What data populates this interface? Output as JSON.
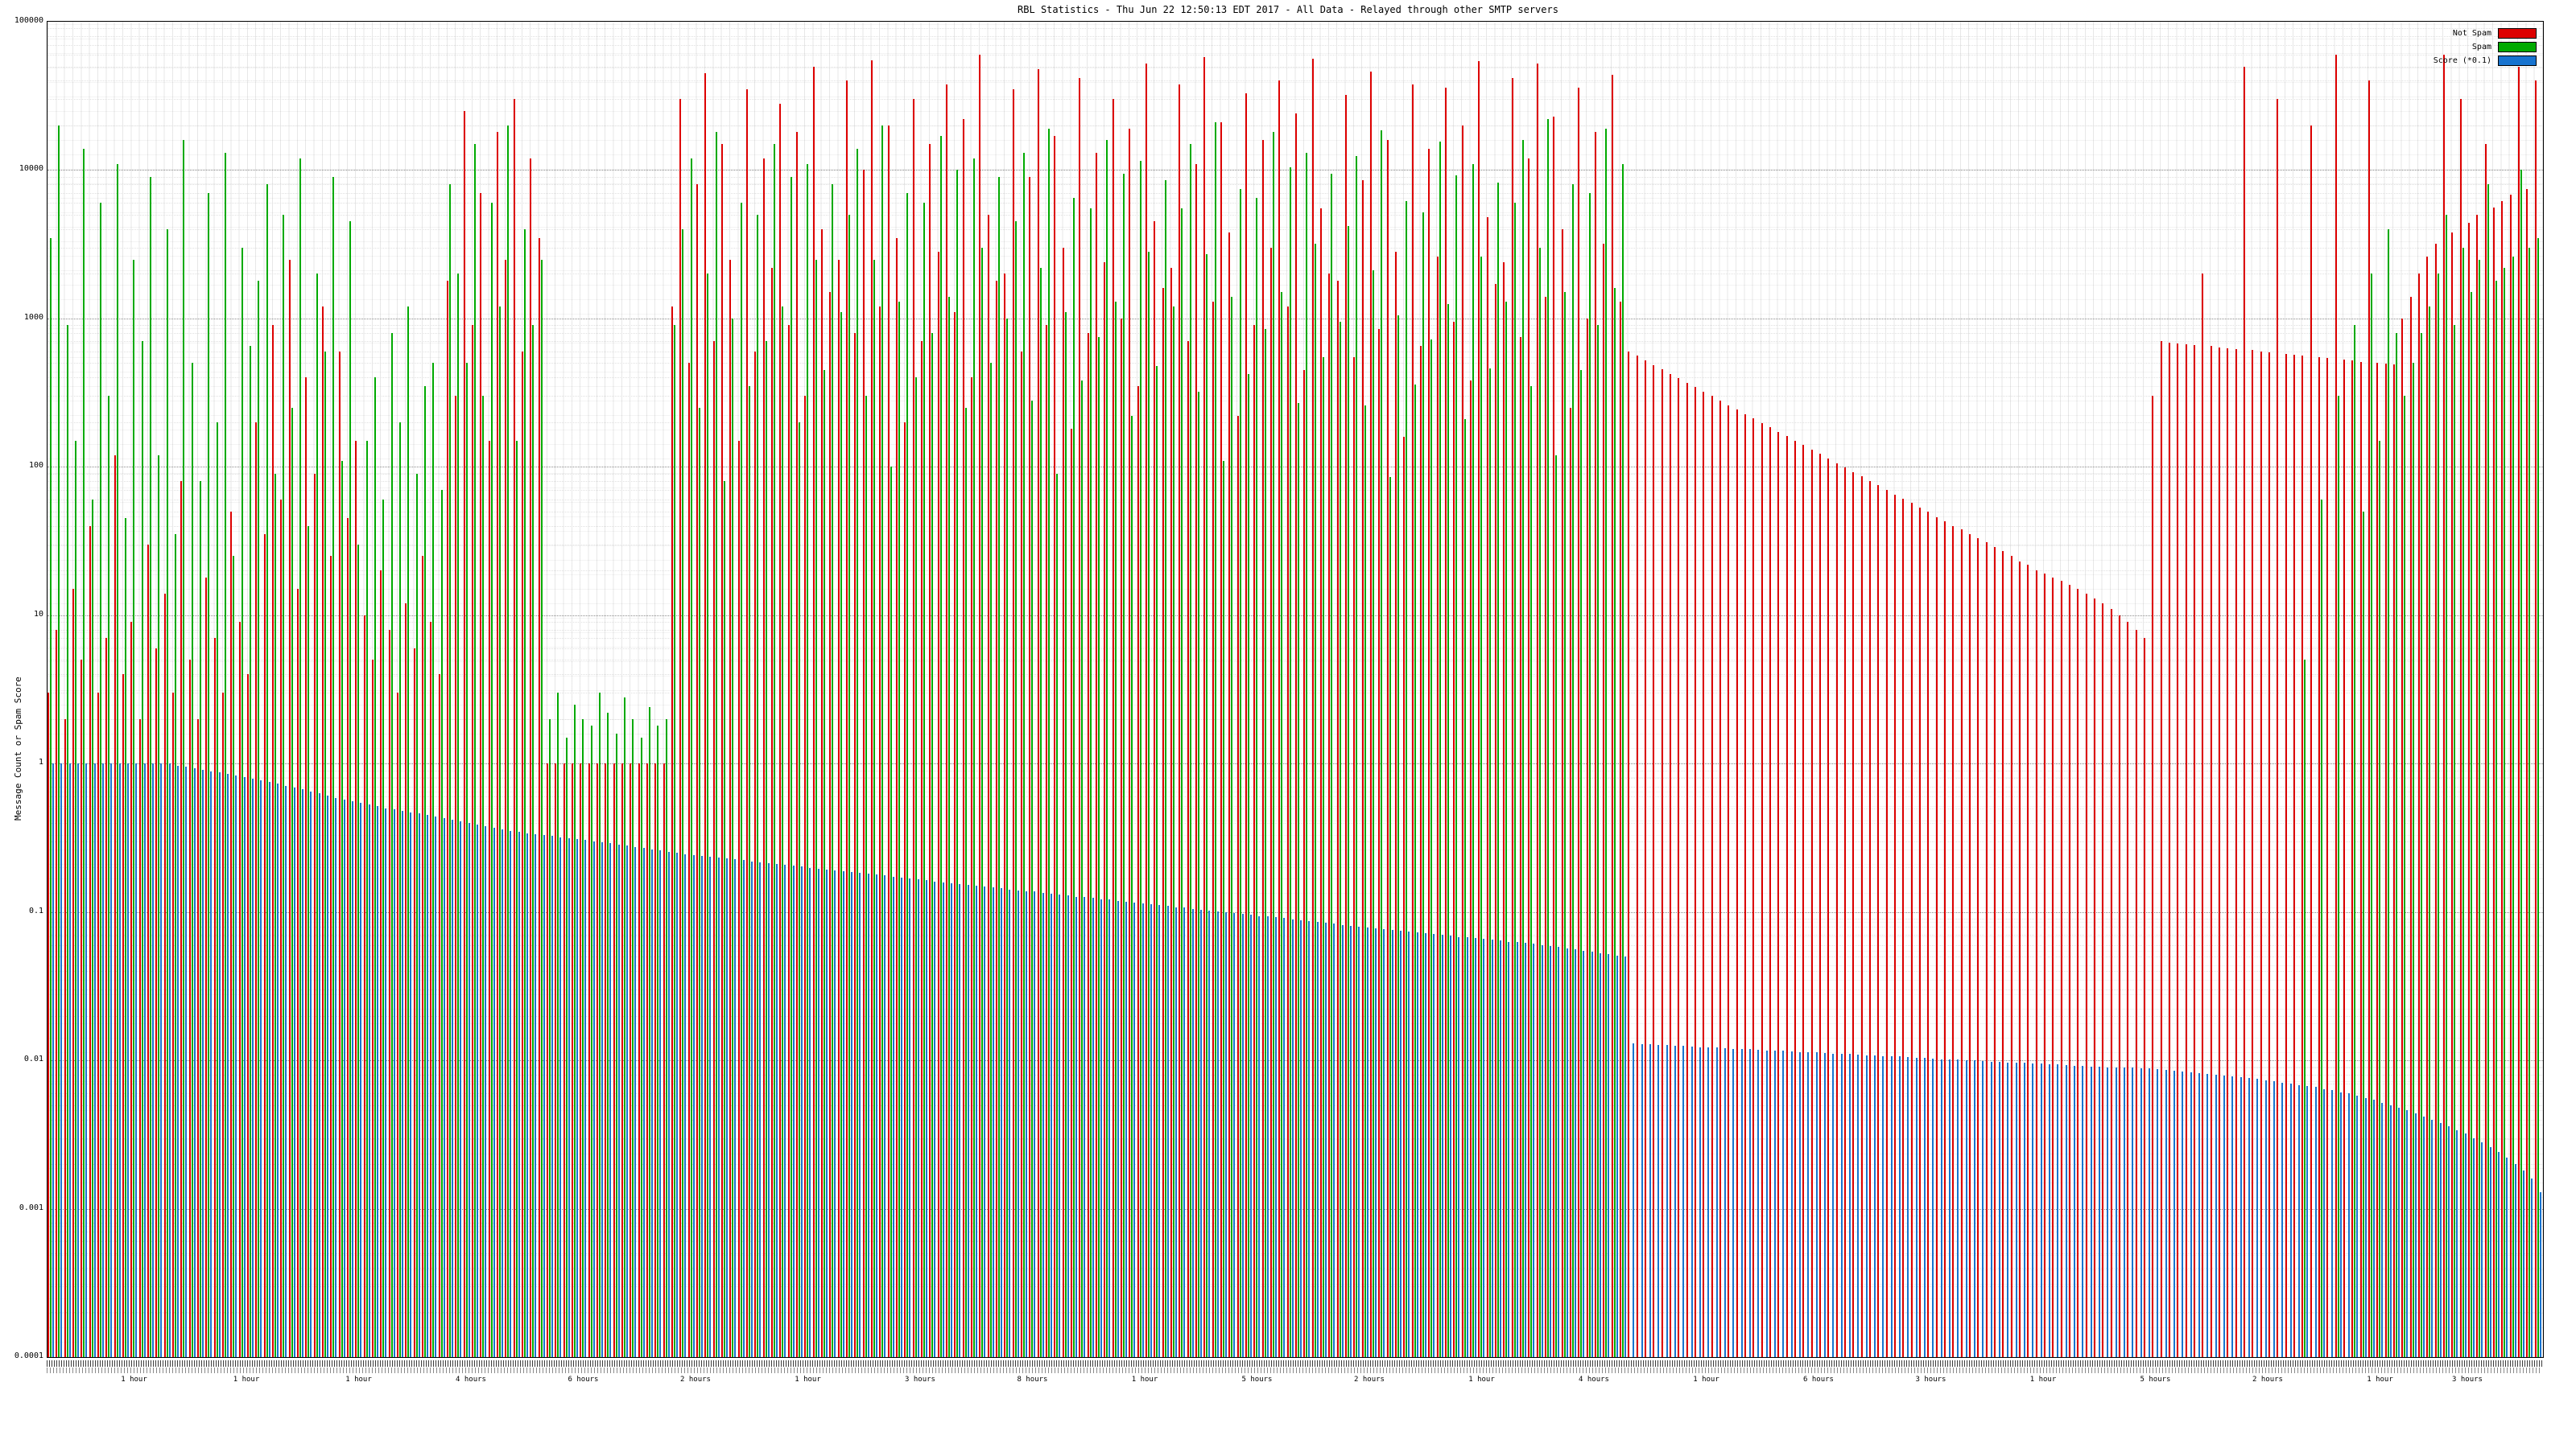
{
  "title": "RBL Statistics - Thu Jun 22 12:50:13 EDT 2017 - All Data - Relayed through other SMTP servers",
  "y_axis": {
    "label": "Message Count or Spam Score",
    "ticks": [
      "100000",
      "10000",
      "1000",
      "100",
      "10",
      "1",
      "0.1",
      "0.01",
      "0.001",
      "0.0001"
    ]
  },
  "legend": {
    "items": [
      {
        "label": "Not Spam",
        "color": "#dd0000"
      },
      {
        "label": "Spam",
        "color": "#00aa00"
      },
      {
        "label": "Score (*0.1)",
        "color": "#1773cf"
      }
    ]
  },
  "x_axis": {
    "duration_labels": [
      {
        "text": "1 hour",
        "pos": 3.5
      },
      {
        "text": "1 hour",
        "pos": 8
      },
      {
        "text": "1 hour",
        "pos": 12.5
      },
      {
        "text": "4 hours",
        "pos": 17
      },
      {
        "text": "6 hours",
        "pos": 21.5
      },
      {
        "text": "2 hours",
        "pos": 26
      },
      {
        "text": "1 hour",
        "pos": 30.5
      },
      {
        "text": "3 hours",
        "pos": 35
      },
      {
        "text": "8 hours",
        "pos": 39.5
      },
      {
        "text": "1 hour",
        "pos": 44
      },
      {
        "text": "5 hours",
        "pos": 48.5
      },
      {
        "text": "2 hours",
        "pos": 53
      },
      {
        "text": "1 hour",
        "pos": 57.5
      },
      {
        "text": "4 hours",
        "pos": 62
      },
      {
        "text": "1 hour",
        "pos": 66.5
      },
      {
        "text": "6 hours",
        "pos": 71
      },
      {
        "text": "3 hours",
        "pos": 75.5
      },
      {
        "text": "1 hour",
        "pos": 80
      },
      {
        "text": "5 hours",
        "pos": 84.5
      },
      {
        "text": "2 hours",
        "pos": 89
      },
      {
        "text": "1 hour",
        "pos": 93.5
      },
      {
        "text": "3 hours",
        "pos": 97
      }
    ]
  },
  "chart_data": {
    "type": "bar",
    "yscale": "log",
    "ylim": [
      0.0001,
      100000
    ],
    "title": "RBL Statistics - Thu Jun 22 12:50:13 EDT 2017 - All Data - Relayed through other SMTP servers",
    "ylabel": "Message Count or Spam Score",
    "grid": true,
    "legend_position": "top-right",
    "series": [
      {
        "name": "Not Spam",
        "color": "#dd0000",
        "values": [
          3,
          8,
          2,
          15,
          5,
          40,
          3,
          7,
          120,
          4,
          9,
          2,
          30,
          6,
          14,
          3,
          80,
          5,
          2,
          18,
          7,
          3,
          50,
          9,
          4,
          200,
          35,
          900,
          60,
          2500,
          15,
          400,
          90,
          1200,
          25,
          600,
          45,
          150,
          10,
          5,
          20,
          8,
          3,
          12,
          6,
          25,
          9,
          4,
          1800,
          300,
          25000,
          900,
          7000,
          150,
          18000,
          2500,
          30000,
          600,
          12000,
          3500,
          1,
          1,
          1,
          1,
          1,
          1,
          1,
          1,
          1,
          1,
          1,
          1,
          1,
          1,
          1,
          1200,
          30000,
          500,
          8000,
          45000,
          700,
          15000,
          2500,
          150,
          35000,
          600,
          12000,
          2200,
          28000,
          900,
          18000,
          300,
          50000,
          4000,
          1500,
          2500,
          40000,
          800,
          10000,
          55000,
          1200,
          20000,
          3500,
          200,
          30000,
          700,
          15000,
          2800,
          38000,
          1100,
          22000,
          400,
          60000,
          5000,
          1800,
          2000,
          35000,
          600,
          9000,
          48000,
          900,
          17000,
          3000,
          180,
          42000,
          800,
          13000,
          2400,
          30000,
          1000,
          19000,
          350,
          52000,
          4500,
          1600,
          2200,
          38000,
          700,
          11000,
          58000,
          1300,
          21000,
          3800,
          220,
          33000,
          900,
          16000,
          3000,
          40000,
          1200,
          24000,
          450,
          56000,
          5500,
          2000,
          1800,
          32000,
          550,
          8500,
          46000,
          850,
          16000,
          2800,
          160,
          38000,
          650,
          14000,
          2600,
          36000,
          950,
          20000,
          380,
          54000,
          4800,
          1700,
          2400,
          42000,
          750,
          12000,
          52000,
          1400,
          23000,
          4000,
          250,
          36000,
          1000,
          18000,
          3200,
          44000,
          1300,
          600,
          560,
          522,
          487,
          454,
          424,
          396,
          369,
          344,
          321,
          300,
          280,
          261,
          244,
          227,
          212,
          198,
          185,
          172,
          161,
          150,
          140,
          131,
          122,
          114,
          106,
          99,
          92,
          86,
          80,
          75,
          70,
          65,
          61,
          57,
          53,
          50,
          46,
          43,
          40,
          38,
          35,
          33,
          31,
          29,
          27,
          25,
          23,
          22,
          20,
          19,
          18,
          17,
          16,
          15,
          14,
          13,
          12,
          11,
          10,
          9,
          8,
          7,
          300,
          700,
          690,
          680,
          670,
          660,
          2000,
          650,
          640,
          630,
          620,
          50000,
          610,
          600,
          590,
          30000,
          580,
          570,
          560,
          20000,
          550,
          540,
          60000,
          530,
          520,
          510,
          40000,
          500,
          495,
          490,
          1000,
          1400,
          2000,
          2600,
          3200,
          60000,
          3800,
          30000,
          4400,
          5000,
          15000,
          5600,
          6200,
          6800,
          50000,
          7500,
          40000
        ]
      },
      {
        "name": "Spam",
        "color": "#00aa00",
        "values": [
          3500,
          20000,
          900,
          150,
          14000,
          60,
          6000,
          300,
          11000,
          45,
          2500,
          700,
          9000,
          120,
          4000,
          35,
          16000,
          500,
          80,
          7000,
          200,
          13000,
          25,
          3000,
          650,
          1800,
          8000,
          90,
          5000,
          250,
          12000,
          40,
          2000,
          600,
          9000,
          110,
          4500,
          30,
          150,
          400,
          60,
          800,
          200,
          1200,
          90,
          350,
          500,
          70,
          8000,
          2000,
          500,
          15000,
          300,
          6000,
          1200,
          20000,
          150,
          4000,
          900,
          2500,
          2,
          3,
          1.5,
          2.5,
          2,
          1.8,
          3,
          2.2,
          1.6,
          2.8,
          2,
          1.5,
          2.4,
          1.8,
          2,
          900,
          4000,
          12000,
          250,
          2000,
          18000,
          80,
          1000,
          6000,
          350,
          5000,
          700,
          15000,
          1200,
          9000,
          200,
          11000,
          2500,
          450,
          8000,
          1100,
          5000,
          14000,
          300,
          2500,
          20000,
          100,
          1300,
          7000,
          400,
          6000,
          800,
          17000,
          1400,
          10000,
          250,
          12000,
          3000,
          500,
          9000,
          1000,
          4500,
          13000,
          280,
          2200,
          19000,
          90,
          1100,
          6500,
          380,
          5500,
          750,
          16000,
          1300,
          9500,
          220,
          11500,
          2800,
          480,
          8500,
          1200,
          5500,
          15000,
          320,
          2700,
          21000,
          110,
          1400,
          7500,
          420,
          6500,
          850,
          18000,
          1500,
          10500,
          270,
          13000,
          3200,
          550,
          9500,
          950,
          4200,
          12500,
          260,
          2100,
          18500,
          85,
          1050,
          6200,
          360,
          5200,
          720,
          15500,
          1250,
          9200,
          210,
          11000,
          2600,
          460,
          8200,
          1300,
          6000,
          16000,
          350,
          3000,
          22000,
          120,
          1500,
          8000,
          450,
          7000,
          900,
          19000,
          1600,
          11000,
          0,
          0,
          0,
          0,
          0,
          0,
          0,
          0,
          0,
          0,
          0,
          0,
          0,
          0,
          0,
          0,
          0,
          0,
          0,
          0,
          0,
          0,
          0,
          0,
          0,
          0,
          0,
          0,
          0,
          0,
          0,
          0,
          0,
          0,
          0,
          0,
          0,
          0,
          0,
          0,
          0,
          0,
          0,
          0,
          0,
          0,
          0,
          0,
          0,
          0,
          0,
          0,
          0,
          0,
          0,
          0,
          0,
          0,
          0,
          0,
          0,
          0,
          0,
          0,
          0,
          0,
          0,
          0,
          0,
          0,
          0,
          0,
          0,
          0,
          0,
          0,
          0,
          0,
          0,
          0,
          0,
          5,
          0,
          60,
          0,
          300,
          0,
          900,
          50,
          2000,
          150,
          4000,
          800,
          300,
          500,
          800,
          1200,
          2000,
          5000,
          900,
          3000,
          1500,
          2500,
          8000,
          1800,
          2200,
          2600,
          10000,
          3000,
          3500
        ]
      },
      {
        "name": "Score (*0.1)",
        "color": "#1773cf",
        "values": [
          1,
          1,
          1,
          1,
          1,
          1,
          1,
          1,
          1,
          1,
          1,
          1,
          1,
          1,
          1,
          0.97,
          0.95,
          0.93,
          0.91,
          0.89,
          0.87,
          0.85,
          0.83,
          0.81,
          0.79,
          0.77,
          0.75,
          0.73,
          0.71,
          0.69,
          0.67,
          0.65,
          0.63,
          0.61,
          0.59,
          0.575,
          0.56,
          0.545,
          0.53,
          0.515,
          0.5,
          0.49,
          0.48,
          0.47,
          0.46,
          0.45,
          0.44,
          0.43,
          0.42,
          0.41,
          0.4,
          0.39,
          0.38,
          0.37,
          0.36,
          0.35,
          0.345,
          0.34,
          0.335,
          0.33,
          0.325,
          0.32,
          0.315,
          0.31,
          0.305,
          0.3,
          0.295,
          0.29,
          0.285,
          0.28,
          0.275,
          0.27,
          0.265,
          0.26,
          0.255,
          0.25,
          0.246,
          0.243,
          0.239,
          0.236,
          0.233,
          0.229,
          0.226,
          0.223,
          0.22,
          0.217,
          0.214,
          0.211,
          0.208,
          0.205,
          0.202,
          0.199,
          0.196,
          0.194,
          0.191,
          0.188,
          0.186,
          0.183,
          0.181,
          0.178,
          0.176,
          0.173,
          0.171,
          0.168,
          0.166,
          0.164,
          0.161,
          0.159,
          0.157,
          0.155,
          0.153,
          0.151,
          0.148,
          0.146,
          0.144,
          0.142,
          0.14,
          0.138,
          0.137,
          0.135,
          0.133,
          0.131,
          0.129,
          0.127,
          0.126,
          0.124,
          0.122,
          0.121,
          0.119,
          0.117,
          0.116,
          0.114,
          0.113,
          0.111,
          0.11,
          0.108,
          0.107,
          0.105,
          0.104,
          0.102,
          0.101,
          0.1,
          0.098,
          0.097,
          0.096,
          0.094,
          0.093,
          0.092,
          0.091,
          0.089,
          0.088,
          0.087,
          0.086,
          0.085,
          0.084,
          0.082,
          0.081,
          0.08,
          0.079,
          0.078,
          0.077,
          0.076,
          0.075,
          0.074,
          0.073,
          0.072,
          0.071,
          0.07,
          0.069,
          0.068,
          0.068,
          0.067,
          0.066,
          0.065,
          0.064,
          0.063,
          0.063,
          0.062,
          0.061,
          0.06,
          0.059,
          0.058,
          0.057,
          0.056,
          0.055,
          0.054,
          0.053,
          0.052,
          0.051,
          0.05,
          0.013,
          0.0129,
          0.0128,
          0.0127,
          0.0127,
          0.0126,
          0.0125,
          0.0124,
          0.0123,
          0.0123,
          0.0122,
          0.0121,
          0.012,
          0.0119,
          0.0119,
          0.0118,
          0.0117,
          0.0116,
          0.0116,
          0.0115,
          0.0114,
          0.0113,
          0.0113,
          0.0112,
          0.0111,
          0.011,
          0.011,
          0.0109,
          0.0108,
          0.0108,
          0.0107,
          0.0106,
          0.0106,
          0.0105,
          0.0104,
          0.0104,
          0.0103,
          0.0102,
          0.0102,
          0.0101,
          0.01,
          0.01,
          0.0099,
          0.0098,
          0.0098,
          0.0097,
          0.0097,
          0.0096,
          0.0095,
          0.0095,
          0.0094,
          0.0094,
          0.0093,
          0.0092,
          0.0092,
          0.0091,
          0.0091,
          0.009,
          0.009,
          0.0089,
          0.0089,
          0.0088,
          0.0088,
          0.0087,
          0.0086,
          0.0085,
          0.0084,
          0.0083,
          0.0082,
          0.0081,
          0.008,
          0.0079,
          0.0078,
          0.0077,
          0.0076,
          0.0075,
          0.0073,
          0.0072,
          0.0071,
          0.007,
          0.0068,
          0.0067,
          0.0066,
          0.0064,
          0.0063,
          0.0061,
          0.006,
          0.0058,
          0.0056,
          0.0054,
          0.0052,
          0.005,
          0.0048,
          0.0046,
          0.0044,
          0.0042,
          0.004,
          0.0038,
          0.0036,
          0.0034,
          0.0032,
          0.003,
          0.0028,
          0.0026,
          0.0024,
          0.0022,
          0.002,
          0.0018,
          0.0016,
          0.0013
        ]
      }
    ]
  }
}
